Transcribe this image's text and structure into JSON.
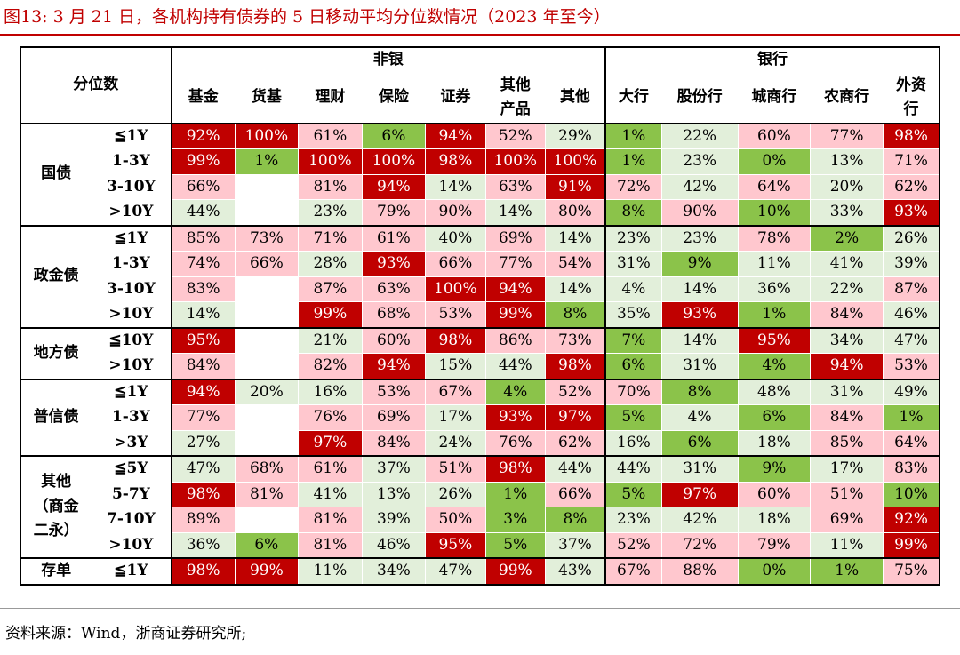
{
  "title": "图13:  3 月 21 日，各机构持有债券的 5 日移动平均分位数情况（2023 年至今）",
  "source": "资料来源：Wind，浙商证券研究所;",
  "colors": {
    "title": "#c00000",
    "dark_red": "#c00000",
    "light_pink": "#ffc7ce",
    "light_green": "#e2efda",
    "green": "#8bc34a"
  },
  "header": {
    "corner": "分位数",
    "groups": [
      {
        "label": "非银"
      },
      {
        "label": "银行"
      }
    ],
    "columns": [
      {
        "label": "基金"
      },
      {
        "label": "货基"
      },
      {
        "label": "理财"
      },
      {
        "label": "保险"
      },
      {
        "label": "证券"
      },
      {
        "label": "其他产品"
      },
      {
        "label": "其他"
      },
      {
        "label": "大行"
      },
      {
        "label": "股份行"
      },
      {
        "label": "城商行"
      },
      {
        "label": "农商行"
      },
      {
        "label": "外资行"
      }
    ]
  },
  "rows": [
    {
      "category": "国债",
      "maturity": "≦1Y",
      "values": [
        {
          "v": "92%",
          "c": "r"
        },
        {
          "v": "100%",
          "c": "r"
        },
        {
          "v": "61%",
          "c": "p"
        },
        {
          "v": "6%",
          "c": "g"
        },
        {
          "v": "94%",
          "c": "r"
        },
        {
          "v": "52%",
          "c": "p"
        },
        {
          "v": "29%",
          "c": "l"
        },
        {
          "v": "1%",
          "c": "g"
        },
        {
          "v": "22%",
          "c": "l"
        },
        {
          "v": "60%",
          "c": "p"
        },
        {
          "v": "77%",
          "c": "p"
        },
        {
          "v": "98%",
          "c": "r"
        }
      ]
    },
    {
      "category": "国债",
      "maturity": "1-3Y",
      "values": [
        {
          "v": "99%",
          "c": "r"
        },
        {
          "v": "1%",
          "c": "g"
        },
        {
          "v": "100%",
          "c": "r"
        },
        {
          "v": "100%",
          "c": "r"
        },
        {
          "v": "98%",
          "c": "r"
        },
        {
          "v": "100%",
          "c": "r"
        },
        {
          "v": "100%",
          "c": "r"
        },
        {
          "v": "1%",
          "c": "g"
        },
        {
          "v": "23%",
          "c": "l"
        },
        {
          "v": "0%",
          "c": "g"
        },
        {
          "v": "13%",
          "c": "l"
        },
        {
          "v": "71%",
          "c": "p"
        }
      ]
    },
    {
      "category": "国债",
      "maturity": "3-10Y",
      "values": [
        {
          "v": "66%",
          "c": "p"
        },
        {
          "v": "",
          "c": "e"
        },
        {
          "v": "81%",
          "c": "p"
        },
        {
          "v": "94%",
          "c": "r"
        },
        {
          "v": "14%",
          "c": "l"
        },
        {
          "v": "63%",
          "c": "p"
        },
        {
          "v": "91%",
          "c": "r"
        },
        {
          "v": "72%",
          "c": "p"
        },
        {
          "v": "42%",
          "c": "l"
        },
        {
          "v": "64%",
          "c": "p"
        },
        {
          "v": "20%",
          "c": "l"
        },
        {
          "v": "62%",
          "c": "p"
        }
      ]
    },
    {
      "category": "国债",
      "maturity": ">10Y",
      "values": [
        {
          "v": "44%",
          "c": "l"
        },
        {
          "v": "",
          "c": "e"
        },
        {
          "v": "23%",
          "c": "l"
        },
        {
          "v": "79%",
          "c": "p"
        },
        {
          "v": "90%",
          "c": "p"
        },
        {
          "v": "14%",
          "c": "l"
        },
        {
          "v": "80%",
          "c": "p"
        },
        {
          "v": "8%",
          "c": "g"
        },
        {
          "v": "90%",
          "c": "p"
        },
        {
          "v": "10%",
          "c": "g"
        },
        {
          "v": "33%",
          "c": "l"
        },
        {
          "v": "93%",
          "c": "r"
        }
      ]
    },
    {
      "category": "政金债",
      "maturity": "≦1Y",
      "values": [
        {
          "v": "85%",
          "c": "p"
        },
        {
          "v": "73%",
          "c": "p"
        },
        {
          "v": "71%",
          "c": "p"
        },
        {
          "v": "61%",
          "c": "p"
        },
        {
          "v": "40%",
          "c": "l"
        },
        {
          "v": "69%",
          "c": "p"
        },
        {
          "v": "14%",
          "c": "l"
        },
        {
          "v": "23%",
          "c": "l"
        },
        {
          "v": "23%",
          "c": "l"
        },
        {
          "v": "78%",
          "c": "p"
        },
        {
          "v": "2%",
          "c": "g"
        },
        {
          "v": "26%",
          "c": "l"
        }
      ]
    },
    {
      "category": "政金债",
      "maturity": "1-3Y",
      "values": [
        {
          "v": "74%",
          "c": "p"
        },
        {
          "v": "66%",
          "c": "p"
        },
        {
          "v": "28%",
          "c": "l"
        },
        {
          "v": "93%",
          "c": "r"
        },
        {
          "v": "66%",
          "c": "p"
        },
        {
          "v": "77%",
          "c": "p"
        },
        {
          "v": "54%",
          "c": "p"
        },
        {
          "v": "31%",
          "c": "l"
        },
        {
          "v": "9%",
          "c": "g"
        },
        {
          "v": "11%",
          "c": "l"
        },
        {
          "v": "41%",
          "c": "l"
        },
        {
          "v": "39%",
          "c": "l"
        }
      ]
    },
    {
      "category": "政金债",
      "maturity": "3-10Y",
      "values": [
        {
          "v": "83%",
          "c": "p"
        },
        {
          "v": "",
          "c": "e"
        },
        {
          "v": "87%",
          "c": "p"
        },
        {
          "v": "63%",
          "c": "p"
        },
        {
          "v": "100%",
          "c": "r"
        },
        {
          "v": "94%",
          "c": "r"
        },
        {
          "v": "14%",
          "c": "l"
        },
        {
          "v": "4%",
          "c": "l"
        },
        {
          "v": "14%",
          "c": "l"
        },
        {
          "v": "36%",
          "c": "l"
        },
        {
          "v": "22%",
          "c": "l"
        },
        {
          "v": "87%",
          "c": "p"
        }
      ]
    },
    {
      "category": "政金债",
      "maturity": ">10Y",
      "values": [
        {
          "v": "14%",
          "c": "l"
        },
        {
          "v": "",
          "c": "e"
        },
        {
          "v": "99%",
          "c": "r"
        },
        {
          "v": "68%",
          "c": "p"
        },
        {
          "v": "53%",
          "c": "p"
        },
        {
          "v": "99%",
          "c": "r"
        },
        {
          "v": "8%",
          "c": "g"
        },
        {
          "v": "35%",
          "c": "l"
        },
        {
          "v": "93%",
          "c": "r"
        },
        {
          "v": "1%",
          "c": "g"
        },
        {
          "v": "84%",
          "c": "p"
        },
        {
          "v": "46%",
          "c": "l"
        }
      ]
    },
    {
      "category": "地方债",
      "maturity": "≦10Y",
      "values": [
        {
          "v": "95%",
          "c": "r"
        },
        {
          "v": "",
          "c": "e"
        },
        {
          "v": "21%",
          "c": "l"
        },
        {
          "v": "60%",
          "c": "p"
        },
        {
          "v": "98%",
          "c": "r"
        },
        {
          "v": "86%",
          "c": "p"
        },
        {
          "v": "73%",
          "c": "p"
        },
        {
          "v": "7%",
          "c": "g"
        },
        {
          "v": "14%",
          "c": "l"
        },
        {
          "v": "95%",
          "c": "r"
        },
        {
          "v": "34%",
          "c": "l"
        },
        {
          "v": "47%",
          "c": "l"
        }
      ]
    },
    {
      "category": "地方债",
      "maturity": ">10Y",
      "values": [
        {
          "v": "84%",
          "c": "p"
        },
        {
          "v": "",
          "c": "e"
        },
        {
          "v": "82%",
          "c": "p"
        },
        {
          "v": "94%",
          "c": "r"
        },
        {
          "v": "15%",
          "c": "l"
        },
        {
          "v": "44%",
          "c": "l"
        },
        {
          "v": "98%",
          "c": "r"
        },
        {
          "v": "6%",
          "c": "g"
        },
        {
          "v": "31%",
          "c": "l"
        },
        {
          "v": "4%",
          "c": "g"
        },
        {
          "v": "94%",
          "c": "r"
        },
        {
          "v": "53%",
          "c": "p"
        }
      ]
    },
    {
      "category": "普信债",
      "maturity": "≦1Y",
      "values": [
        {
          "v": "94%",
          "c": "r"
        },
        {
          "v": "20%",
          "c": "l"
        },
        {
          "v": "16%",
          "c": "l"
        },
        {
          "v": "53%",
          "c": "p"
        },
        {
          "v": "67%",
          "c": "p"
        },
        {
          "v": "4%",
          "c": "g"
        },
        {
          "v": "52%",
          "c": "p"
        },
        {
          "v": "70%",
          "c": "p"
        },
        {
          "v": "8%",
          "c": "g"
        },
        {
          "v": "48%",
          "c": "l"
        },
        {
          "v": "31%",
          "c": "l"
        },
        {
          "v": "49%",
          "c": "l"
        }
      ]
    },
    {
      "category": "普信债",
      "maturity": "1-3Y",
      "values": [
        {
          "v": "77%",
          "c": "p"
        },
        {
          "v": "",
          "c": "e"
        },
        {
          "v": "76%",
          "c": "p"
        },
        {
          "v": "69%",
          "c": "p"
        },
        {
          "v": "17%",
          "c": "l"
        },
        {
          "v": "93%",
          "c": "r"
        },
        {
          "v": "97%",
          "c": "r"
        },
        {
          "v": "5%",
          "c": "g"
        },
        {
          "v": "4%",
          "c": "l"
        },
        {
          "v": "6%",
          "c": "g"
        },
        {
          "v": "84%",
          "c": "p"
        },
        {
          "v": "1%",
          "c": "g"
        }
      ]
    },
    {
      "category": "普信债",
      "maturity": ">3Y",
      "values": [
        {
          "v": "27%",
          "c": "l"
        },
        {
          "v": "",
          "c": "e"
        },
        {
          "v": "97%",
          "c": "r"
        },
        {
          "v": "84%",
          "c": "p"
        },
        {
          "v": "24%",
          "c": "l"
        },
        {
          "v": "76%",
          "c": "p"
        },
        {
          "v": "62%",
          "c": "p"
        },
        {
          "v": "16%",
          "c": "l"
        },
        {
          "v": "6%",
          "c": "g"
        },
        {
          "v": "18%",
          "c": "l"
        },
        {
          "v": "85%",
          "c": "p"
        },
        {
          "v": "64%",
          "c": "p"
        }
      ]
    },
    {
      "category": "其他（商金二永）",
      "maturity": "≦5Y",
      "values": [
        {
          "v": "47%",
          "c": "l"
        },
        {
          "v": "68%",
          "c": "p"
        },
        {
          "v": "61%",
          "c": "p"
        },
        {
          "v": "37%",
          "c": "l"
        },
        {
          "v": "51%",
          "c": "p"
        },
        {
          "v": "98%",
          "c": "r"
        },
        {
          "v": "44%",
          "c": "l"
        },
        {
          "v": "44%",
          "c": "l"
        },
        {
          "v": "31%",
          "c": "l"
        },
        {
          "v": "9%",
          "c": "g"
        },
        {
          "v": "17%",
          "c": "l"
        },
        {
          "v": "83%",
          "c": "p"
        }
      ]
    },
    {
      "category": "其他（商金二永）",
      "maturity": "5-7Y",
      "values": [
        {
          "v": "98%",
          "c": "r"
        },
        {
          "v": "81%",
          "c": "p"
        },
        {
          "v": "41%",
          "c": "l"
        },
        {
          "v": "13%",
          "c": "l"
        },
        {
          "v": "26%",
          "c": "l"
        },
        {
          "v": "1%",
          "c": "g"
        },
        {
          "v": "66%",
          "c": "p"
        },
        {
          "v": "5%",
          "c": "g"
        },
        {
          "v": "97%",
          "c": "r"
        },
        {
          "v": "60%",
          "c": "p"
        },
        {
          "v": "51%",
          "c": "p"
        },
        {
          "v": "10%",
          "c": "g"
        }
      ]
    },
    {
      "category": "其他（商金二永）",
      "maturity": "7-10Y",
      "values": [
        {
          "v": "89%",
          "c": "p"
        },
        {
          "v": "",
          "c": "e"
        },
        {
          "v": "81%",
          "c": "p"
        },
        {
          "v": "39%",
          "c": "l"
        },
        {
          "v": "50%",
          "c": "p"
        },
        {
          "v": "3%",
          "c": "g"
        },
        {
          "v": "8%",
          "c": "g"
        },
        {
          "v": "23%",
          "c": "l"
        },
        {
          "v": "42%",
          "c": "l"
        },
        {
          "v": "18%",
          "c": "l"
        },
        {
          "v": "69%",
          "c": "p"
        },
        {
          "v": "92%",
          "c": "r"
        }
      ]
    },
    {
      "category": "其他（商金二永）",
      "maturity": ">10Y",
      "values": [
        {
          "v": "36%",
          "c": "l"
        },
        {
          "v": "6%",
          "c": "g"
        },
        {
          "v": "81%",
          "c": "p"
        },
        {
          "v": "46%",
          "c": "l"
        },
        {
          "v": "95%",
          "c": "r"
        },
        {
          "v": "5%",
          "c": "g"
        },
        {
          "v": "37%",
          "c": "l"
        },
        {
          "v": "52%",
          "c": "p"
        },
        {
          "v": "72%",
          "c": "p"
        },
        {
          "v": "79%",
          "c": "p"
        },
        {
          "v": "11%",
          "c": "l"
        },
        {
          "v": "99%",
          "c": "r"
        }
      ]
    },
    {
      "category": "存单",
      "maturity": "≦1Y",
      "values": [
        {
          "v": "98%",
          "c": "r"
        },
        {
          "v": "99%",
          "c": "r"
        },
        {
          "v": "11%",
          "c": "l"
        },
        {
          "v": "34%",
          "c": "l"
        },
        {
          "v": "47%",
          "c": "l"
        },
        {
          "v": "99%",
          "c": "r"
        },
        {
          "v": "43%",
          "c": "l"
        },
        {
          "v": "67%",
          "c": "p"
        },
        {
          "v": "88%",
          "c": "p"
        },
        {
          "v": "0%",
          "c": "g"
        },
        {
          "v": "1%",
          "c": "g"
        },
        {
          "v": "75%",
          "c": "p"
        }
      ]
    }
  ]
}
